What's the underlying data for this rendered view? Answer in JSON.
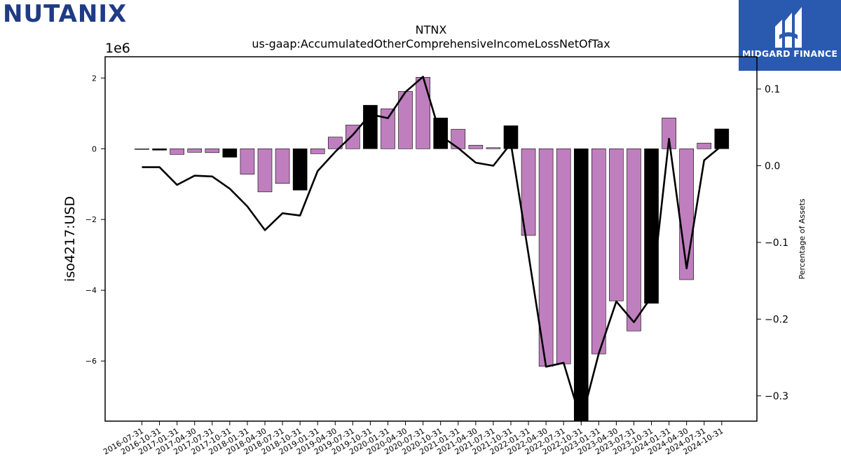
{
  "logo": {
    "text": "NUTANIX",
    "color": "#1f3b85",
    "accent": "#9ccb3b"
  },
  "badge": {
    "text": "MIDGARD FINANCE",
    "color": "#2a5ab0"
  },
  "chart_data": {
    "type": "bar",
    "title": "NTNX",
    "subtitle": "us-gaap:AccumulatedOtherComprehensiveIncomeLossNetOfTax",
    "ylabel": "iso4217:USD",
    "y_offset_text": "1e6",
    "y2label": "Percentage of Assets",
    "ylim": [
      -7.7,
      2.6
    ],
    "y2lim": [
      -0.333,
      0.142
    ],
    "y_ticks": [
      2,
      0,
      -2,
      -4,
      -6
    ],
    "y2_ticks": [
      0.1,
      0.0,
      -0.1,
      -0.2,
      -0.3
    ],
    "y2_tick_labels": [
      "0.1",
      "0.0",
      "−0.1",
      "−0.2",
      "−0.3"
    ],
    "categories": [
      "2016-07-31",
      "2016-10-31",
      "2017-01-31",
      "2017-04-30",
      "2017-07-31",
      "2017-10-31",
      "2018-01-31",
      "2018-04-30",
      "2018-07-31",
      "2018-10-31",
      "2019-01-31",
      "2019-04-30",
      "2019-07-31",
      "2019-10-31",
      "2020-01-31",
      "2020-04-30",
      "2020-07-31",
      "2020-10-31",
      "2021-01-31",
      "2021-04-30",
      "2021-07-31",
      "2021-10-31",
      "2022-01-31",
      "2022-04-30",
      "2022-07-31",
      "2022-10-31",
      "2023-01-31",
      "2023-04-30",
      "2023-07-31",
      "2023-10-31",
      "2024-01-31",
      "2024-04-30",
      "2024-07-31",
      "2024-10-31"
    ],
    "series": [
      {
        "type": "bar",
        "values": [
          -0.02,
          -0.04,
          -0.16,
          -0.1,
          -0.11,
          -0.24,
          -0.72,
          -1.22,
          -0.98,
          -1.17,
          -0.14,
          0.33,
          0.67,
          1.23,
          1.13,
          1.62,
          2.02,
          0.87,
          0.55,
          0.1,
          0.03,
          0.65,
          -2.45,
          -6.15,
          -6.08,
          -7.7,
          -5.8,
          -4.3,
          -5.15,
          -4.37,
          0.87,
          -3.7,
          0.16,
          0.56
        ],
        "fourth_quarter_color": "#000000",
        "other_color": "#bf7fbf"
      },
      {
        "type": "line",
        "axis": "right",
        "color": "#000000",
        "values": [
          -0.002,
          -0.002,
          -0.025,
          -0.013,
          -0.014,
          -0.03,
          -0.053,
          -0.084,
          -0.062,
          -0.065,
          -0.007,
          0.018,
          0.04,
          0.067,
          0.062,
          0.096,
          0.116,
          0.039,
          0.023,
          0.004,
          0.0,
          0.029,
          -0.115,
          -0.262,
          -0.257,
          -0.333,
          -0.245,
          -0.177,
          -0.204,
          -0.171,
          0.035,
          -0.134,
          0.007,
          0.026
        ]
      }
    ],
    "grid": false
  }
}
